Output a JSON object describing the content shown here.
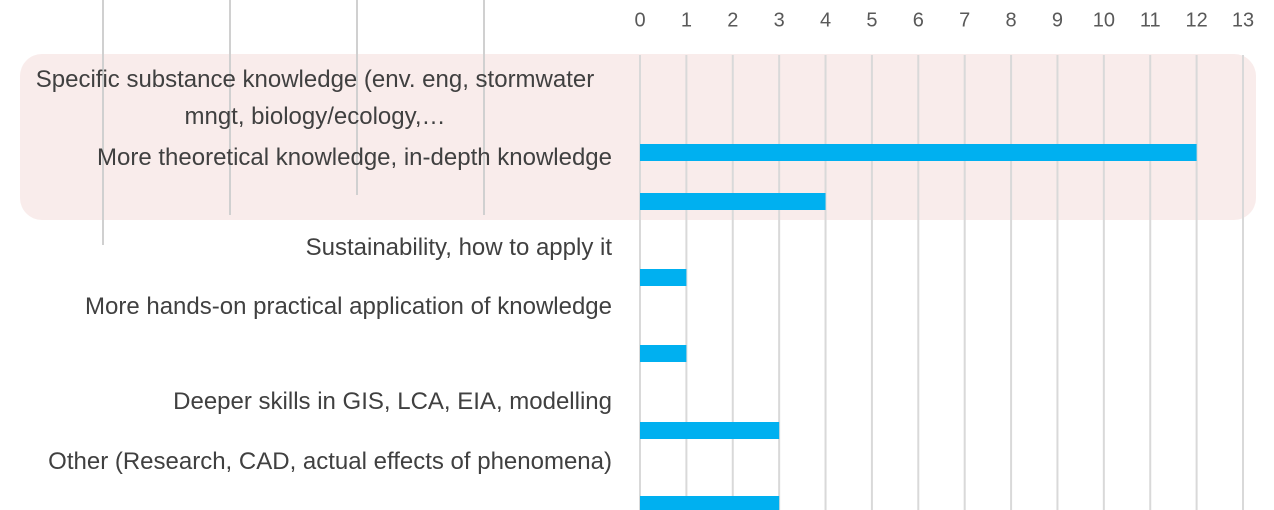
{
  "chart_data": {
    "type": "bar",
    "orientation": "horizontal",
    "categories": [
      "Specific substance knowledge (env. eng, stormwater mngt, biology/ecology,…",
      "More theoretical knowledge, in-depth knowledge",
      "Sustainability, how to apply it",
      "More hands-on practical application of knowledge",
      "Deeper skills in GIS, LCA, EIA, modelling",
      "Other (Research, CAD, actual effects of phenomena)"
    ],
    "values": [
      12,
      4,
      1,
      1,
      3,
      3
    ],
    "color": "#00b0f0",
    "xlim": [
      0,
      13
    ],
    "xticks": [
      0,
      1,
      2,
      3,
      4,
      5,
      6,
      7,
      8,
      9,
      10,
      11,
      12,
      13
    ],
    "grid": true
  }
}
